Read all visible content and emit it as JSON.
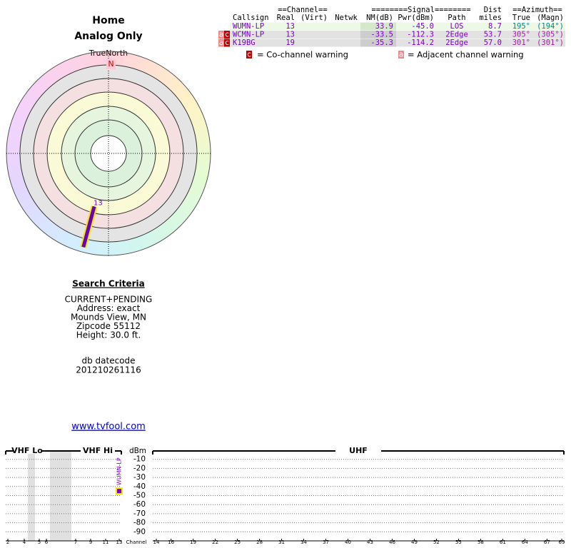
{
  "header": {
    "title": "Home",
    "subtitle": "Analog Only"
  },
  "polar": {
    "north_label": "TrueNorth",
    "north_marker": "N",
    "stations": [
      {
        "label": "13",
        "azimuth": 195
      }
    ]
  },
  "search": {
    "title": "Search Criteria",
    "lines": [
      "CURRENT+PENDING",
      "Address: exact",
      "Mounds View, MN",
      "Zipcode 55112",
      "Height: 30.0 ft."
    ],
    "db_label": "db datecode",
    "db_code": "201210261116"
  },
  "link": "www.tvfool.com",
  "table": {
    "group_headers": [
      "==Channel==",
      "========Signal========",
      "Dist",
      "==Azimuth=="
    ],
    "headers": [
      "Callsign",
      "Real",
      "(Virt)",
      "Netwk",
      "NM(dB)",
      "Pwr(dBm)",
      "Path",
      "miles",
      "True",
      "(Magn)"
    ],
    "rows": [
      {
        "flags": [],
        "cells": [
          "WUMN-LP",
          "13",
          "",
          "",
          "33.9",
          "-45.0",
          "LOS",
          "8.7",
          "195°",
          "(194°)"
        ]
      },
      {
        "flags": [
          "a",
          "c"
        ],
        "cells": [
          "WCMN-LP",
          "13",
          "",
          "",
          "-33.5",
          "-112.3",
          "2Edge",
          "53.7",
          "305°",
          "(305°)"
        ]
      },
      {
        "flags": [
          "a",
          "c"
        ],
        "cells": [
          "K19BG",
          "19",
          "",
          "",
          "-35.3",
          "-114.2",
          "2Edge",
          "57.0",
          "301°",
          "(301°)"
        ]
      }
    ]
  },
  "legend": [
    {
      "icon": "c",
      "text": "= Co-channel warning"
    },
    {
      "icon": "a",
      "text": "= Adjacent channel warning"
    }
  ],
  "chart_data": {
    "type": "spectrum",
    "band_labels": [
      "VHF Lo",
      "VHF Hi",
      "UHF"
    ],
    "y_label": "dBm",
    "x_label": "Channel",
    "vhf_channels": [
      2,
      4,
      5,
      6,
      7,
      9,
      11,
      13
    ],
    "uhf_channels": [
      14,
      16,
      19,
      22,
      25,
      28,
      31,
      34,
      37,
      40,
      43,
      46,
      49,
      52,
      55,
      58,
      61,
      64,
      67,
      69
    ],
    "ylim": [
      -100,
      0
    ],
    "yticks": [
      -10,
      -20,
      -30,
      -40,
      -50,
      -60,
      -70,
      -80,
      -90
    ],
    "series": [
      {
        "name": "WUMN-LP",
        "color": "#7a00c8",
        "x": [
          13
        ],
        "values": [
          -45
        ]
      }
    ]
  }
}
